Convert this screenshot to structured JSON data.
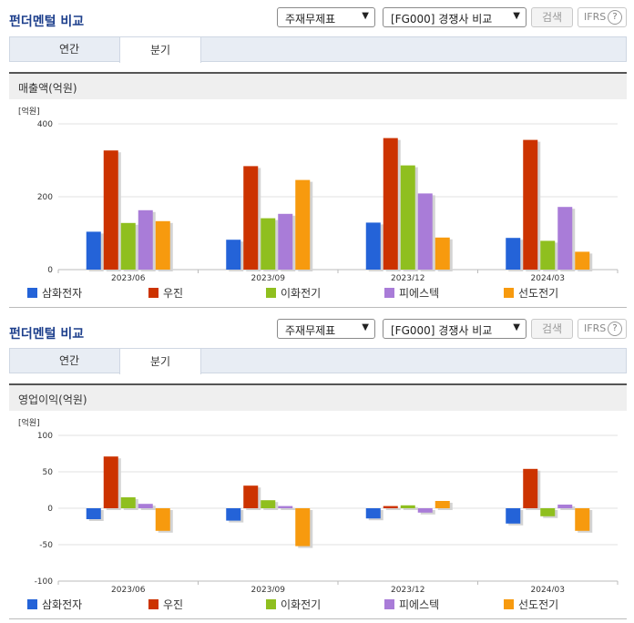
{
  "colors": {
    "삼화전자": "#2463d8",
    "우진": "#cc3300",
    "이화전기": "#8fbf1f",
    "피에스텍": "#a97cd8",
    "선도전기": "#f79a0e"
  },
  "panels": [
    {
      "title": "펀더멘털 비교",
      "select1": "주재무제표",
      "select2": "[FG000] 경쟁사 비교",
      "search_label": "검색",
      "ifrs_label": "IFRS",
      "ifrs_help": "?",
      "tabs": [
        {
          "label": "연간"
        },
        {
          "label": "분기"
        }
      ],
      "active_tab": 1,
      "subheader": "매출액(억원)",
      "chart_data": {
        "type": "bar",
        "unit_label": "[억원]",
        "categories": [
          "2023/06",
          "2023/09",
          "2023/12",
          "2024/03"
        ],
        "ylim": [
          0,
          400
        ],
        "yticks": [
          0,
          200,
          400
        ],
        "series": [
          {
            "name": "삼화전자",
            "values": [
              104,
              82,
              129,
              87
            ]
          },
          {
            "name": "우진",
            "values": [
              327,
              284,
              361,
              356
            ]
          },
          {
            "name": "이화전기",
            "values": [
              128,
              141,
              286,
              79
            ]
          },
          {
            "name": "피에스텍",
            "values": [
              163,
              153,
              209,
              172
            ]
          },
          {
            "name": "선도전기",
            "values": [
              133,
              246,
              88,
              49
            ]
          }
        ]
      }
    },
    {
      "title": "펀더멘털 비교",
      "select1": "주재무제표",
      "select2": "[FG000] 경쟁사 비교",
      "search_label": "검색",
      "ifrs_label": "IFRS",
      "ifrs_help": "?",
      "tabs": [
        {
          "label": "연간"
        },
        {
          "label": "분기"
        }
      ],
      "active_tab": 1,
      "subheader": "영업이익(억원)",
      "chart_data": {
        "type": "bar",
        "unit_label": "[억원]",
        "categories": [
          "2023/06",
          "2023/09",
          "2023/12",
          "2024/03"
        ],
        "ylim": [
          -100,
          100
        ],
        "yticks": [
          -100,
          -50,
          0,
          50,
          100
        ],
        "series": [
          {
            "name": "삼화전자",
            "values": [
              -15,
              -17,
              -14,
              -21
            ]
          },
          {
            "name": "우진",
            "values": [
              71,
              31,
              3,
              54
            ]
          },
          {
            "name": "이화전기",
            "values": [
              15,
              11,
              4,
              -11
            ]
          },
          {
            "name": "피에스텍",
            "values": [
              6,
              3,
              -6,
              5
            ]
          },
          {
            "name": "선도전기",
            "values": [
              -31,
              -52,
              10,
              -31
            ]
          }
        ]
      }
    }
  ]
}
